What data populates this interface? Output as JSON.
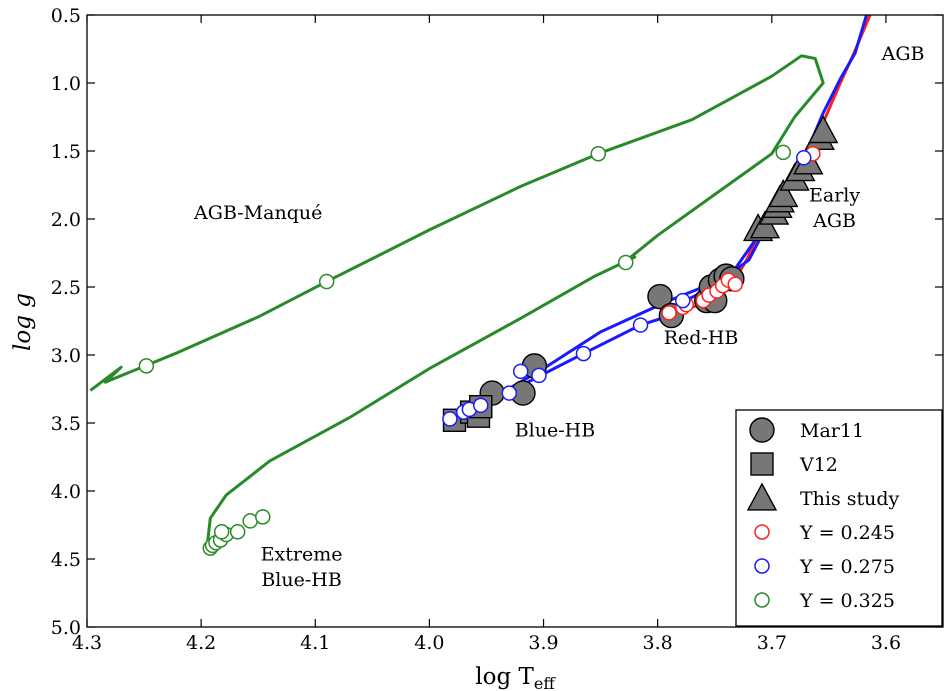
{
  "chart_data": {
    "type": "scatter",
    "xlabel": "log T",
    "xlabel_sub": "eff",
    "ylabel": "log g",
    "xlim": [
      4.3,
      3.55
    ],
    "ylim": [
      5.0,
      0.5
    ],
    "x_ticks": [
      {
        "value": 4.3,
        "label": "4.3"
      },
      {
        "value": 4.2,
        "label": "4.2"
      },
      {
        "value": 4.1,
        "label": "4.1"
      },
      {
        "value": 4.0,
        "label": "4.0"
      },
      {
        "value": 3.9,
        "label": "3.9"
      },
      {
        "value": 3.8,
        "label": "3.8"
      },
      {
        "value": 3.7,
        "label": "3.7"
      },
      {
        "value": 3.6,
        "label": "3.6"
      }
    ],
    "y_ticks": [
      {
        "value": 0.5,
        "label": "0.5"
      },
      {
        "value": 1.0,
        "label": "1.0"
      },
      {
        "value": 1.5,
        "label": "1.5"
      },
      {
        "value": 2.0,
        "label": "2.0"
      },
      {
        "value": 2.5,
        "label": "2.5"
      },
      {
        "value": 3.0,
        "label": "3.0"
      },
      {
        "value": 3.5,
        "label": "3.5"
      },
      {
        "value": 4.0,
        "label": "4.0"
      },
      {
        "value": 4.5,
        "label": "4.5"
      },
      {
        "value": 5.0,
        "label": "5.0"
      }
    ],
    "grid": false,
    "legend_position": "bottom-right",
    "tracks": [
      {
        "color": "#2a8a2a",
        "points": [
          [
            4.297,
            3.26
          ],
          [
            4.27,
            3.09
          ],
          [
            4.284,
            3.2
          ],
          [
            4.22,
            2.98
          ],
          [
            4.15,
            2.72
          ],
          [
            4.09,
            2.46
          ],
          [
            4.0,
            2.08
          ],
          [
            3.92,
            1.76
          ],
          [
            3.852,
            1.52
          ],
          [
            3.77,
            1.27
          ],
          [
            3.7,
            0.95
          ],
          [
            3.674,
            0.8
          ],
          [
            3.662,
            0.82
          ],
          [
            3.655,
            1.0
          ],
          [
            3.68,
            1.25
          ],
          [
            3.7,
            1.52
          ],
          [
            3.75,
            1.82
          ],
          [
            3.8,
            2.12
          ],
          [
            3.828,
            2.31
          ],
          [
            3.833,
            2.33
          ],
          [
            3.82,
            2.28
          ],
          [
            3.855,
            2.42
          ],
          [
            3.92,
            2.73
          ],
          [
            4.0,
            3.1
          ],
          [
            4.07,
            3.46
          ],
          [
            4.14,
            3.78
          ],
          [
            4.178,
            4.03
          ],
          [
            4.192,
            4.2
          ],
          [
            4.194,
            4.35
          ],
          [
            4.195,
            4.42
          ]
        ]
      },
      {
        "color": "#ff2020",
        "points": [
          [
            3.793,
            2.7
          ],
          [
            3.77,
            2.65
          ],
          [
            3.75,
            2.58
          ],
          [
            3.734,
            2.47
          ],
          [
            3.722,
            2.3
          ],
          [
            3.71,
            2.08
          ],
          [
            3.693,
            1.88
          ],
          [
            3.674,
            1.62
          ],
          [
            3.658,
            1.35
          ],
          [
            3.64,
            1.0
          ],
          [
            3.628,
            0.78
          ],
          [
            3.614,
            0.5
          ]
        ]
      },
      {
        "color": "#1a1aff",
        "points": [
          [
            3.968,
            3.48
          ],
          [
            3.952,
            3.38
          ],
          [
            3.93,
            3.27
          ],
          [
            3.9,
            3.14
          ],
          [
            3.865,
            2.99
          ],
          [
            3.815,
            2.78
          ],
          [
            3.785,
            2.7
          ],
          [
            3.78,
            2.62
          ],
          [
            3.75,
            2.49
          ],
          [
            3.72,
            2.3
          ],
          [
            3.71,
            2.14
          ],
          [
            3.698,
            1.97
          ],
          [
            3.683,
            1.76
          ],
          [
            3.67,
            1.52
          ],
          [
            3.655,
            1.22
          ],
          [
            3.64,
            0.97
          ],
          [
            3.627,
            0.78
          ],
          [
            3.617,
            0.5
          ]
        ]
      },
      {
        "color": "#1a1aff",
        "points": [
          [
            3.982,
            3.48
          ],
          [
            3.97,
            3.4
          ],
          [
            3.945,
            3.32
          ],
          [
            3.9,
            3.1
          ],
          [
            3.85,
            2.83
          ],
          [
            3.79,
            2.6
          ],
          [
            3.76,
            2.5
          ],
          [
            3.735,
            2.4
          ],
          [
            3.715,
            2.16
          ]
        ]
      }
    ],
    "series": [
      {
        "name": "Mar11",
        "marker": "circle",
        "color": "#777777",
        "points": [
          [
            3.945,
            3.28
          ],
          [
            3.918,
            3.28
          ],
          [
            3.908,
            3.08
          ],
          [
            3.798,
            2.57
          ],
          [
            3.788,
            2.71
          ],
          [
            3.757,
            2.6
          ],
          [
            3.75,
            2.6
          ],
          [
            3.753,
            2.5
          ],
          [
            3.745,
            2.45
          ],
          [
            3.74,
            2.42
          ],
          [
            3.735,
            2.44
          ]
        ]
      },
      {
        "name": "V12",
        "marker": "square",
        "color": "#777777",
        "points": [
          [
            3.978,
            3.48
          ],
          [
            3.963,
            3.42
          ],
          [
            3.957,
            3.45
          ],
          [
            3.955,
            3.38
          ]
        ]
      },
      {
        "name": "This study",
        "marker": "triangle",
        "color": "#777777",
        "points": [
          [
            3.712,
            2.07
          ],
          [
            3.706,
            2.05
          ],
          [
            3.698,
            1.95
          ],
          [
            3.695,
            1.9
          ],
          [
            3.693,
            1.86
          ],
          [
            3.69,
            1.82
          ],
          [
            3.68,
            1.7
          ],
          [
            3.675,
            1.63
          ],
          [
            3.668,
            1.58
          ],
          [
            3.658,
            1.4
          ],
          [
            3.655,
            1.35
          ]
        ]
      },
      {
        "name": "Y = 0.245",
        "marker": "open-circle",
        "color": "#ff2020",
        "points": [
          [
            3.79,
            2.69
          ],
          [
            3.778,
            2.65
          ],
          [
            3.775,
            2.63
          ],
          [
            3.76,
            2.6
          ],
          [
            3.755,
            2.56
          ],
          [
            3.748,
            2.53
          ],
          [
            3.743,
            2.49
          ],
          [
            3.738,
            2.45
          ],
          [
            3.732,
            2.48
          ],
          [
            3.664,
            1.52
          ]
        ]
      },
      {
        "name": "Y = 0.275",
        "marker": "open-circle",
        "color": "#1a1aff",
        "points": [
          [
            3.982,
            3.47
          ],
          [
            3.97,
            3.42
          ],
          [
            3.965,
            3.4
          ],
          [
            3.955,
            3.37
          ],
          [
            3.93,
            3.28
          ],
          [
            3.92,
            3.12
          ],
          [
            3.904,
            3.15
          ],
          [
            3.865,
            2.99
          ],
          [
            3.815,
            2.78
          ],
          [
            3.778,
            2.6
          ],
          [
            3.672,
            1.55
          ]
        ]
      },
      {
        "name": "Y = 0.325",
        "marker": "open-circle",
        "color": "#2a8a2a",
        "points": [
          [
            4.248,
            3.08
          ],
          [
            4.09,
            2.46
          ],
          [
            3.852,
            1.52
          ],
          [
            3.828,
            2.32
          ],
          [
            3.69,
            1.51
          ],
          [
            4.192,
            4.42
          ],
          [
            4.19,
            4.4
          ],
          [
            4.187,
            4.38
          ],
          [
            4.183,
            4.36
          ],
          [
            4.178,
            4.32
          ],
          [
            4.168,
            4.3
          ],
          [
            4.157,
            4.22
          ],
          [
            4.146,
            4.19
          ],
          [
            4.182,
            4.3
          ]
        ]
      }
    ],
    "annotations": [
      {
        "text": "AGB-Manqué",
        "x": 4.15,
        "y": 2.0
      },
      {
        "text": "AGB",
        "x": 3.585,
        "y": 0.83
      },
      {
        "text": "Early",
        "x": 3.645,
        "y": 1.87
      },
      {
        "text": "AGB",
        "x": 3.645,
        "y": 2.06
      },
      {
        "text": "Red-HB",
        "x": 3.762,
        "y": 2.92
      },
      {
        "text": "Blue-HB",
        "x": 3.89,
        "y": 3.6
      },
      {
        "text": "Extreme",
        "x": 4.112,
        "y": 4.51
      },
      {
        "text": "Blue-HB",
        "x": 4.112,
        "y": 4.7
      }
    ]
  }
}
